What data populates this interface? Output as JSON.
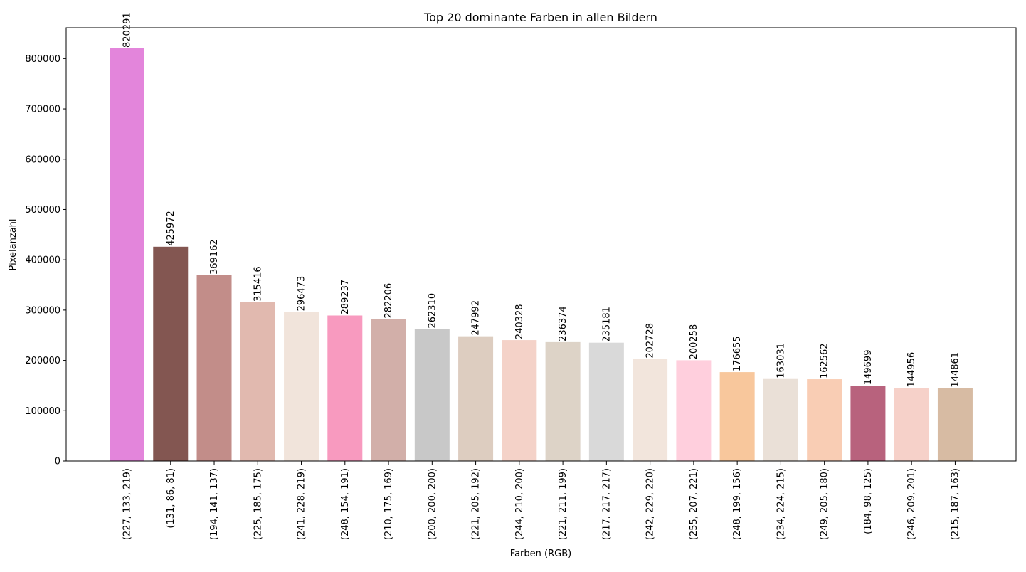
{
  "chart_data": {
    "type": "bar",
    "title": "Top 20 dominante Farben in allen Bildern",
    "xlabel": "Farben (RGB)",
    "ylabel": "Pixelanzahl",
    "ylim": [
      0,
      861305
    ],
    "yticks": [
      0,
      100000,
      200000,
      300000,
      400000,
      500000,
      600000,
      700000,
      800000
    ],
    "grid": false,
    "categories": [
      "(227, 133, 219)",
      "(131, 86, 81)",
      "(194, 141, 137)",
      "(225, 185, 175)",
      "(241, 228, 219)",
      "(248, 154, 191)",
      "(210, 175, 169)",
      "(200, 200, 200)",
      "(221, 205, 192)",
      "(244, 210, 200)",
      "(221, 211, 199)",
      "(217, 217, 217)",
      "(242, 229, 220)",
      "(255, 207, 221)",
      "(248, 199, 156)",
      "(234, 224, 215)",
      "(249, 205, 180)",
      "(184, 98, 125)",
      "(246, 209, 201)",
      "(215, 187, 163)"
    ],
    "values": [
      820291,
      425972,
      369162,
      315416,
      296473,
      289237,
      282206,
      262310,
      247992,
      240328,
      236374,
      235181,
      202728,
      200258,
      176655,
      163031,
      162562,
      149699,
      144956,
      144861
    ],
    "value_labels": [
      "820291",
      "425972",
      "369162",
      "315416",
      "296473",
      "289237",
      "282206",
      "262310",
      "247992",
      "240328",
      "236374",
      "235181",
      "202728",
      "200258",
      "176655",
      "163031",
      "162562",
      "149699",
      "144956",
      "144861"
    ],
    "colors": [
      "#e385db",
      "#835651",
      "#c28d89",
      "#e1b9af",
      "#f1e4db",
      "#f89abf",
      "#d2afa9",
      "#c8c8c8",
      "#ddcdc0",
      "#f4d2c8",
      "#ddd3c7",
      "#d9d9d9",
      "#f2e5dc",
      "#ffcfdd",
      "#f8c79c",
      "#eae0d7",
      "#f9cdb4",
      "#b8627d",
      "#f6d1c9",
      "#d7bba3"
    ]
  }
}
